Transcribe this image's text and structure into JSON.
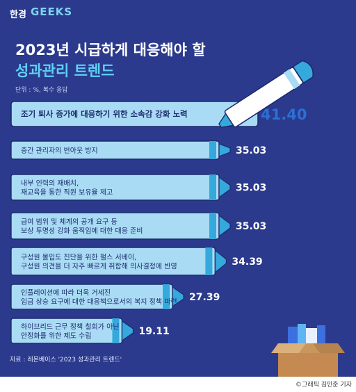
{
  "brand": {
    "han": "한경",
    "geeks": "GEEKS"
  },
  "title_line1": "2023년 시급하게 대응해야 할",
  "title_line2": "성과관리 트렌드",
  "unit_note": "단위 : %, 복수 응답",
  "source": "자료 : 레몬베이스 '2023 성과관리 트렌드'",
  "credit": "©그래픽 김민준 기자",
  "colors": {
    "background": "#2b3a8c",
    "pen_body": "#a9dcf4",
    "pen_tip": "#35a8dc",
    "title_accent": "#5fd0f5",
    "top_value": "#2c6fd6"
  },
  "icons": [
    "pen-icon",
    "box-icon"
  ],
  "chart_data": {
    "type": "bar",
    "orientation": "horizontal",
    "title": "2023년 시급하게 대응해야 할 성과관리 트렌드",
    "unit": "%",
    "categories": [
      [
        "조기 퇴사 증가에 대응하기 위한 소속감 강화 노력"
      ],
      [
        "중간 관리자의 번아웃 방지"
      ],
      [
        "내부 인력의 재배치,",
        "재교육을 통한 직원 보유율 제고"
      ],
      [
        "급여 범위 및 체계의 공개 요구 등",
        "보상 투명성 강화 움직임에 대한 대응 준비"
      ],
      [
        "구성원 몰입도 진단을 위한 펄스 서베이,",
        "구성원 의견을 더 자주 빠르게 취합해 의사결정에 반영"
      ],
      [
        "인플레이션에 따라 더욱 거세진",
        "임금 상승 요구에 대한 대응책으로서의 복지 정책 마련"
      ],
      [
        "하이브리드 근무 정책 철회가 아닌",
        "안정화를 위한 제도 수립"
      ]
    ],
    "values": [
      "41.40",
      "35.03",
      "35.03",
      "35.03",
      "34.39",
      "27.39",
      "19.11"
    ],
    "xlim": [
      0,
      42
    ]
  }
}
